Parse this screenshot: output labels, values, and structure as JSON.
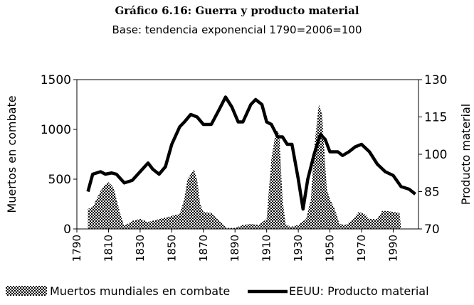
{
  "chart_data": {
    "type": "area-line",
    "title": "Gráfico 6.16: Guerra y producto material",
    "subtitle": "Base: tendencia exponencial 1790=2006=100",
    "y_label": "Muertos en combate",
    "y2_label": "Producto material",
    "xlim": [
      1790,
      2006
    ],
    "xticks": [
      1790,
      1810,
      1830,
      1850,
      1870,
      1890,
      1910,
      1930,
      1950,
      1970,
      1990
    ],
    "ylim": [
      0,
      1500
    ],
    "yticks": [
      0,
      500,
      1000,
      1500
    ],
    "y2lim": [
      70,
      130
    ],
    "y2ticks": [
      70,
      85,
      100,
      115,
      130
    ],
    "series": [
      {
        "name": "Muertos mundiales en combate",
        "color": "#000000",
        "kind": "area",
        "x": [
          1797,
          1800,
          1805,
          1808,
          1810,
          1813,
          1815,
          1818,
          1820,
          1825,
          1830,
          1835,
          1840,
          1845,
          1850,
          1855,
          1858,
          1860,
          1864,
          1866,
          1868,
          1870,
          1875,
          1880,
          1885,
          1890,
          1895,
          1900,
          1905,
          1910,
          1913,
          1916,
          1918,
          1920,
          1922,
          1925,
          1930,
          1935,
          1938,
          1940,
          1943,
          1945,
          1948,
          1950,
          1953,
          1956,
          1960,
          1965,
          1968,
          1972,
          1975,
          1980,
          1983,
          1986,
          1990,
          1994,
          1995
        ],
        "values": [
          200,
          220,
          380,
          450,
          470,
          420,
          300,
          120,
          30,
          80,
          100,
          70,
          90,
          110,
          130,
          150,
          300,
          500,
          600,
          500,
          250,
          170,
          160,
          80,
          10,
          10,
          40,
          50,
          40,
          100,
          700,
          1000,
          950,
          300,
          50,
          20,
          40,
          100,
          300,
          800,
          1250,
          1150,
          400,
          300,
          200,
          50,
          40,
          100,
          170,
          150,
          100,
          100,
          180,
          180,
          170,
          160,
          0
        ]
      },
      {
        "name": "EEUU: Producto material",
        "color": "#000000",
        "kind": "line",
        "axis": "y2",
        "x": [
          1797,
          1800,
          1805,
          1808,
          1812,
          1815,
          1820,
          1825,
          1830,
          1835,
          1838,
          1842,
          1846,
          1850,
          1855,
          1858,
          1862,
          1866,
          1870,
          1875,
          1880,
          1884,
          1888,
          1892,
          1895,
          1900,
          1903,
          1907,
          1910,
          1913,
          1917,
          1920,
          1923,
          1926,
          1930,
          1933,
          1936,
          1940,
          1944,
          1947,
          1950,
          1955,
          1958,
          1962,
          1966,
          1970,
          1975,
          1980,
          1985,
          1990,
          1995,
          2000,
          2004
        ],
        "values": [
          85,
          92,
          93,
          92,
          92.5,
          92,
          88.5,
          89.5,
          93,
          96.5,
          94,
          92,
          95,
          104,
          111,
          113,
          116,
          115,
          112,
          112,
          118,
          123,
          119,
          113,
          113,
          120,
          122,
          120,
          113,
          112,
          107,
          107,
          104,
          104,
          90,
          78,
          90,
          100,
          108,
          106,
          101,
          101,
          99.5,
          101,
          103,
          104,
          101,
          96,
          93,
          91.5,
          87,
          86,
          84
        ]
      }
    ]
  }
}
